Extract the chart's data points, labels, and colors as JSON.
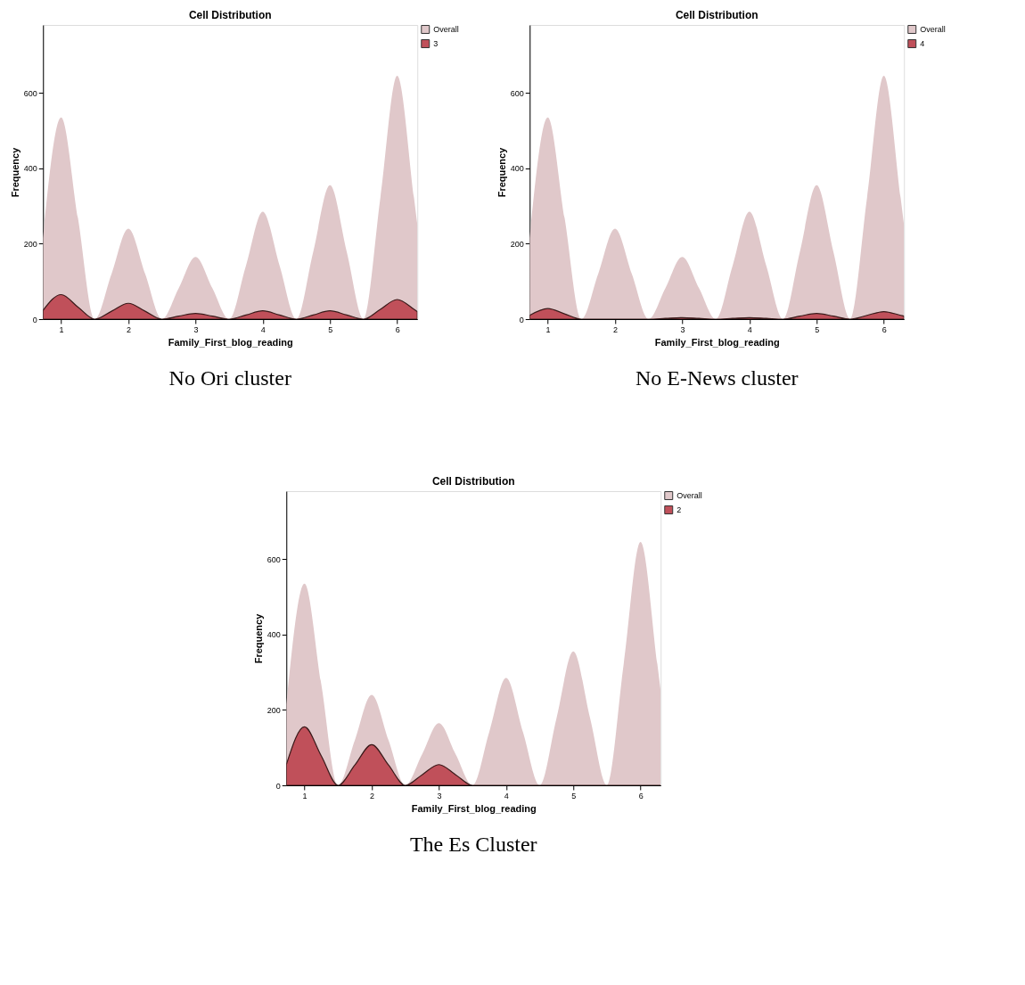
{
  "chart_data": [
    {
      "type": "area",
      "title": "Cell Distribution",
      "xlabel": "Family_First_blog_reading",
      "ylabel": "Frequency",
      "x": [
        0.73,
        1,
        1.25,
        1.5,
        1.75,
        2,
        2.25,
        2.5,
        2.75,
        3,
        3.25,
        3.5,
        3.75,
        4,
        4.25,
        4.5,
        4.75,
        5,
        5.25,
        5.5,
        5.75,
        6,
        6.25,
        6.3
      ],
      "series": [
        {
          "name": "Overall",
          "color": "#e0c8ca",
          "values": [
            215,
            535,
            268,
            0,
            120,
            240,
            120,
            0,
            82,
            165,
            82,
            0,
            142,
            285,
            142,
            0,
            178,
            355,
            178,
            0,
            322,
            645,
            322,
            250
          ]
        },
        {
          "name": "3",
          "color": "#c0505a",
          "values": [
            23,
            65,
            32,
            0,
            21,
            42,
            21,
            0,
            8,
            15,
            8,
            0,
            11,
            22,
            11,
            0,
            11,
            22,
            11,
            0,
            26,
            52,
            26,
            20
          ]
        }
      ],
      "xlim": [
        0.73,
        6.3
      ],
      "ylim": [
        0,
        780
      ],
      "xticks": [
        1,
        2,
        3,
        4,
        5,
        6
      ],
      "yticks": [
        0,
        200,
        400,
        600
      ],
      "legend": "top right",
      "grid": false,
      "annotations": [
        "No Ori cluster"
      ]
    },
    {
      "type": "area",
      "title": "Cell Distribution",
      "xlabel": "Family_First_blog_reading",
      "ylabel": "Frequency",
      "x": [
        0.73,
        1,
        1.25,
        1.5,
        1.75,
        2,
        2.25,
        2.5,
        2.75,
        3,
        3.25,
        3.5,
        3.75,
        4,
        4.25,
        4.5,
        4.75,
        5,
        5.25,
        5.5,
        5.75,
        6,
        6.25,
        6.3
      ],
      "series": [
        {
          "name": "Overall",
          "color": "#e0c8ca",
          "values": [
            215,
            535,
            268,
            0,
            120,
            240,
            120,
            0,
            82,
            165,
            82,
            0,
            142,
            285,
            142,
            0,
            178,
            355,
            178,
            0,
            322,
            645,
            322,
            250
          ]
        },
        {
          "name": "4",
          "color": "#c0505a",
          "values": [
            10,
            28,
            14,
            0,
            0,
            0,
            0,
            0,
            2,
            4,
            2,
            0,
            2,
            4,
            2,
            0,
            8,
            15,
            8,
            0,
            10,
            20,
            10,
            8
          ]
        }
      ],
      "xlim": [
        0.73,
        6.3
      ],
      "ylim": [
        0,
        780
      ],
      "xticks": [
        1,
        2,
        3,
        4,
        5,
        6
      ],
      "yticks": [
        0,
        200,
        400,
        600
      ],
      "legend": "top right",
      "grid": false,
      "annotations": [
        "No E-News cluster"
      ]
    },
    {
      "type": "area",
      "title": "Cell Distribution",
      "xlabel": "Family_First_blog_reading",
      "ylabel": "Frequency",
      "x": [
        0.73,
        1,
        1.25,
        1.5,
        1.75,
        2,
        2.25,
        2.5,
        2.75,
        3,
        3.25,
        3.5,
        3.75,
        4,
        4.25,
        4.5,
        4.75,
        5,
        5.25,
        5.5,
        5.75,
        6,
        6.25,
        6.3
      ],
      "series": [
        {
          "name": "Overall",
          "color": "#e0c8ca",
          "values": [
            215,
            535,
            268,
            0,
            120,
            240,
            120,
            0,
            82,
            165,
            82,
            0,
            142,
            285,
            142,
            0,
            178,
            355,
            178,
            0,
            322,
            645,
            322,
            250
          ]
        },
        {
          "name": "2",
          "color": "#c0505a",
          "values": [
            55,
            155,
            78,
            0,
            54,
            108,
            54,
            0,
            28,
            55,
            28,
            0,
            0,
            0,
            0,
            0,
            0,
            0,
            0,
            0,
            0,
            0,
            0,
            0
          ]
        }
      ],
      "xlim": [
        0.73,
        6.3
      ],
      "ylim": [
        0,
        780
      ],
      "xticks": [
        1,
        2,
        3,
        4,
        5,
        6
      ],
      "yticks": [
        0,
        200,
        400,
        600
      ],
      "legend": "top right",
      "grid": false,
      "annotations": [
        "The Es Cluster"
      ]
    }
  ]
}
